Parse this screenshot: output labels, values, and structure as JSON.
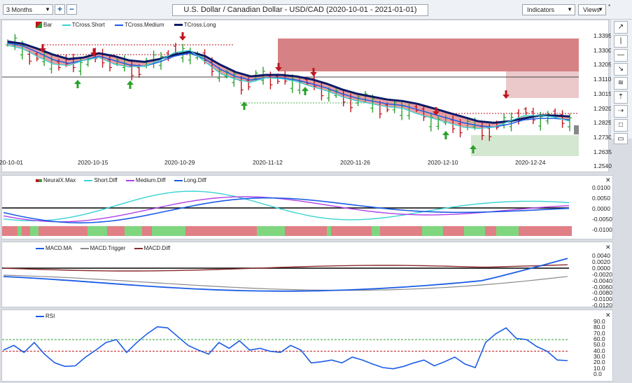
{
  "toolbar": {
    "period": "3 Months",
    "zoom_in": "+",
    "zoom_out": "−",
    "title": "U.S. Dollar / Canadian Dollar - USD/CAD (2020-10-01 - 2021-01-01)",
    "indicators": "Indicators",
    "views": "Views",
    "pin": "*"
  },
  "colors": {
    "up": "#2ba02b",
    "down": "#c0141c",
    "tcross_short": "#38d3d3",
    "tcross_medium": "#1b5ce6",
    "tcross_long": "#0a1a66",
    "macd_trigger": "#8a8a8a",
    "macd_diff": "#8b2a2a",
    "medium_diff": "#b040e8",
    "rsi": "#1b5ce6"
  },
  "main_legend": {
    "bar": "Bar",
    "short": "TCross.Short",
    "medium": "TCross.Medium",
    "long": "TCross.Long"
  },
  "price_axis": [
    "1.3395",
    "1.3300",
    "1.3205",
    "1.3110",
    "1.3015",
    "1.2920",
    "1.2825",
    "1.2730",
    "1.2635",
    "1.2540"
  ],
  "dates": [
    "20-10-01",
    "2020-10-15",
    "2020-10-29",
    "2020-11-12",
    "2020-11-26",
    "2020-12-10",
    "2020-12-24"
  ],
  "neural_legend": {
    "neural": "NeuralX.Max",
    "short": "Short.Diff",
    "medium": "Medium.Diff",
    "long": "Long.Diff"
  },
  "neural_axis": [
    "0.0100",
    "0.0050",
    "0.0000",
    "-0.0050",
    "-0.0100"
  ],
  "macd_legend": {
    "ma": "MACD.MA",
    "trigger": "MACD.Trigger",
    "diff": "MACD.Diff"
  },
  "macd_axis": [
    "0.0040",
    "0.0020",
    "0.0000",
    "-0.0020",
    "-0.0040",
    "-0.0060",
    "-0.0080",
    "-0.0100",
    "-0.0120"
  ],
  "rsi_legend": {
    "rsi": "RSI"
  },
  "rsi_axis": [
    "90.0",
    "80.0",
    "70.0",
    "60.0",
    "50.0",
    "40.0",
    "30.0",
    "20.0",
    "10.0",
    "0.0"
  ],
  "close_glyph": "✕",
  "sidebar_icons": [
    "↗",
    "|",
    "—",
    "↘",
    "≋",
    "⇡",
    "⇢",
    "□",
    "▭"
  ],
  "chart_data": {
    "type": "line",
    "title": "U.S. Dollar / Canadian Dollar - USD/CAD (2020-10-01 - 2021-01-01)",
    "ylim": [
      1.254,
      1.3395
    ],
    "series": [
      {
        "name": "TCross.Long",
        "values": [
          1.3335,
          1.332,
          1.3285,
          1.3245,
          1.3215,
          1.3225,
          1.3255,
          1.3235,
          1.3205,
          1.3195,
          1.3215,
          1.3245,
          1.3265,
          1.3235,
          1.3175,
          1.3125,
          1.3095,
          1.3105,
          1.3105,
          1.3095,
          1.3075,
          1.3045,
          1.3005,
          1.2975,
          1.2955,
          1.2935,
          1.2925,
          1.2905,
          1.2875,
          1.2845,
          1.2815,
          1.2785,
          1.2775,
          1.2785,
          1.2805,
          1.2825,
          1.2825,
          1.2818
        ]
      },
      {
        "name": "TCross.Medium",
        "values": [
          1.3325,
          1.3305,
          1.326,
          1.321,
          1.3185,
          1.3205,
          1.3235,
          1.3205,
          1.3175,
          1.3165,
          1.3195,
          1.3235,
          1.3255,
          1.3215,
          1.3145,
          1.3095,
          1.307,
          1.3085,
          1.3085,
          1.307,
          1.3045,
          1.3015,
          1.2975,
          1.2945,
          1.2925,
          1.2905,
          1.2895,
          1.2865,
          1.2835,
          1.2805,
          1.2775,
          1.2755,
          1.2745,
          1.2765,
          1.2795,
          1.2805,
          1.2805,
          1.2795
        ]
      },
      {
        "name": "TCross.Short",
        "values": [
          1.331,
          1.3285,
          1.323,
          1.318,
          1.317,
          1.3205,
          1.3225,
          1.318,
          1.316,
          1.3165,
          1.3205,
          1.326,
          1.3275,
          1.3195,
          1.3115,
          1.3075,
          1.3055,
          1.3085,
          1.308,
          1.306,
          1.3025,
          1.2995,
          1.2955,
          1.2925,
          1.2905,
          1.2885,
          1.2875,
          1.2835,
          1.2805,
          1.2775,
          1.2745,
          1.2735,
          1.2745,
          1.2785,
          1.2825,
          1.2825,
          1.2815,
          1.2785
        ]
      }
    ]
  }
}
